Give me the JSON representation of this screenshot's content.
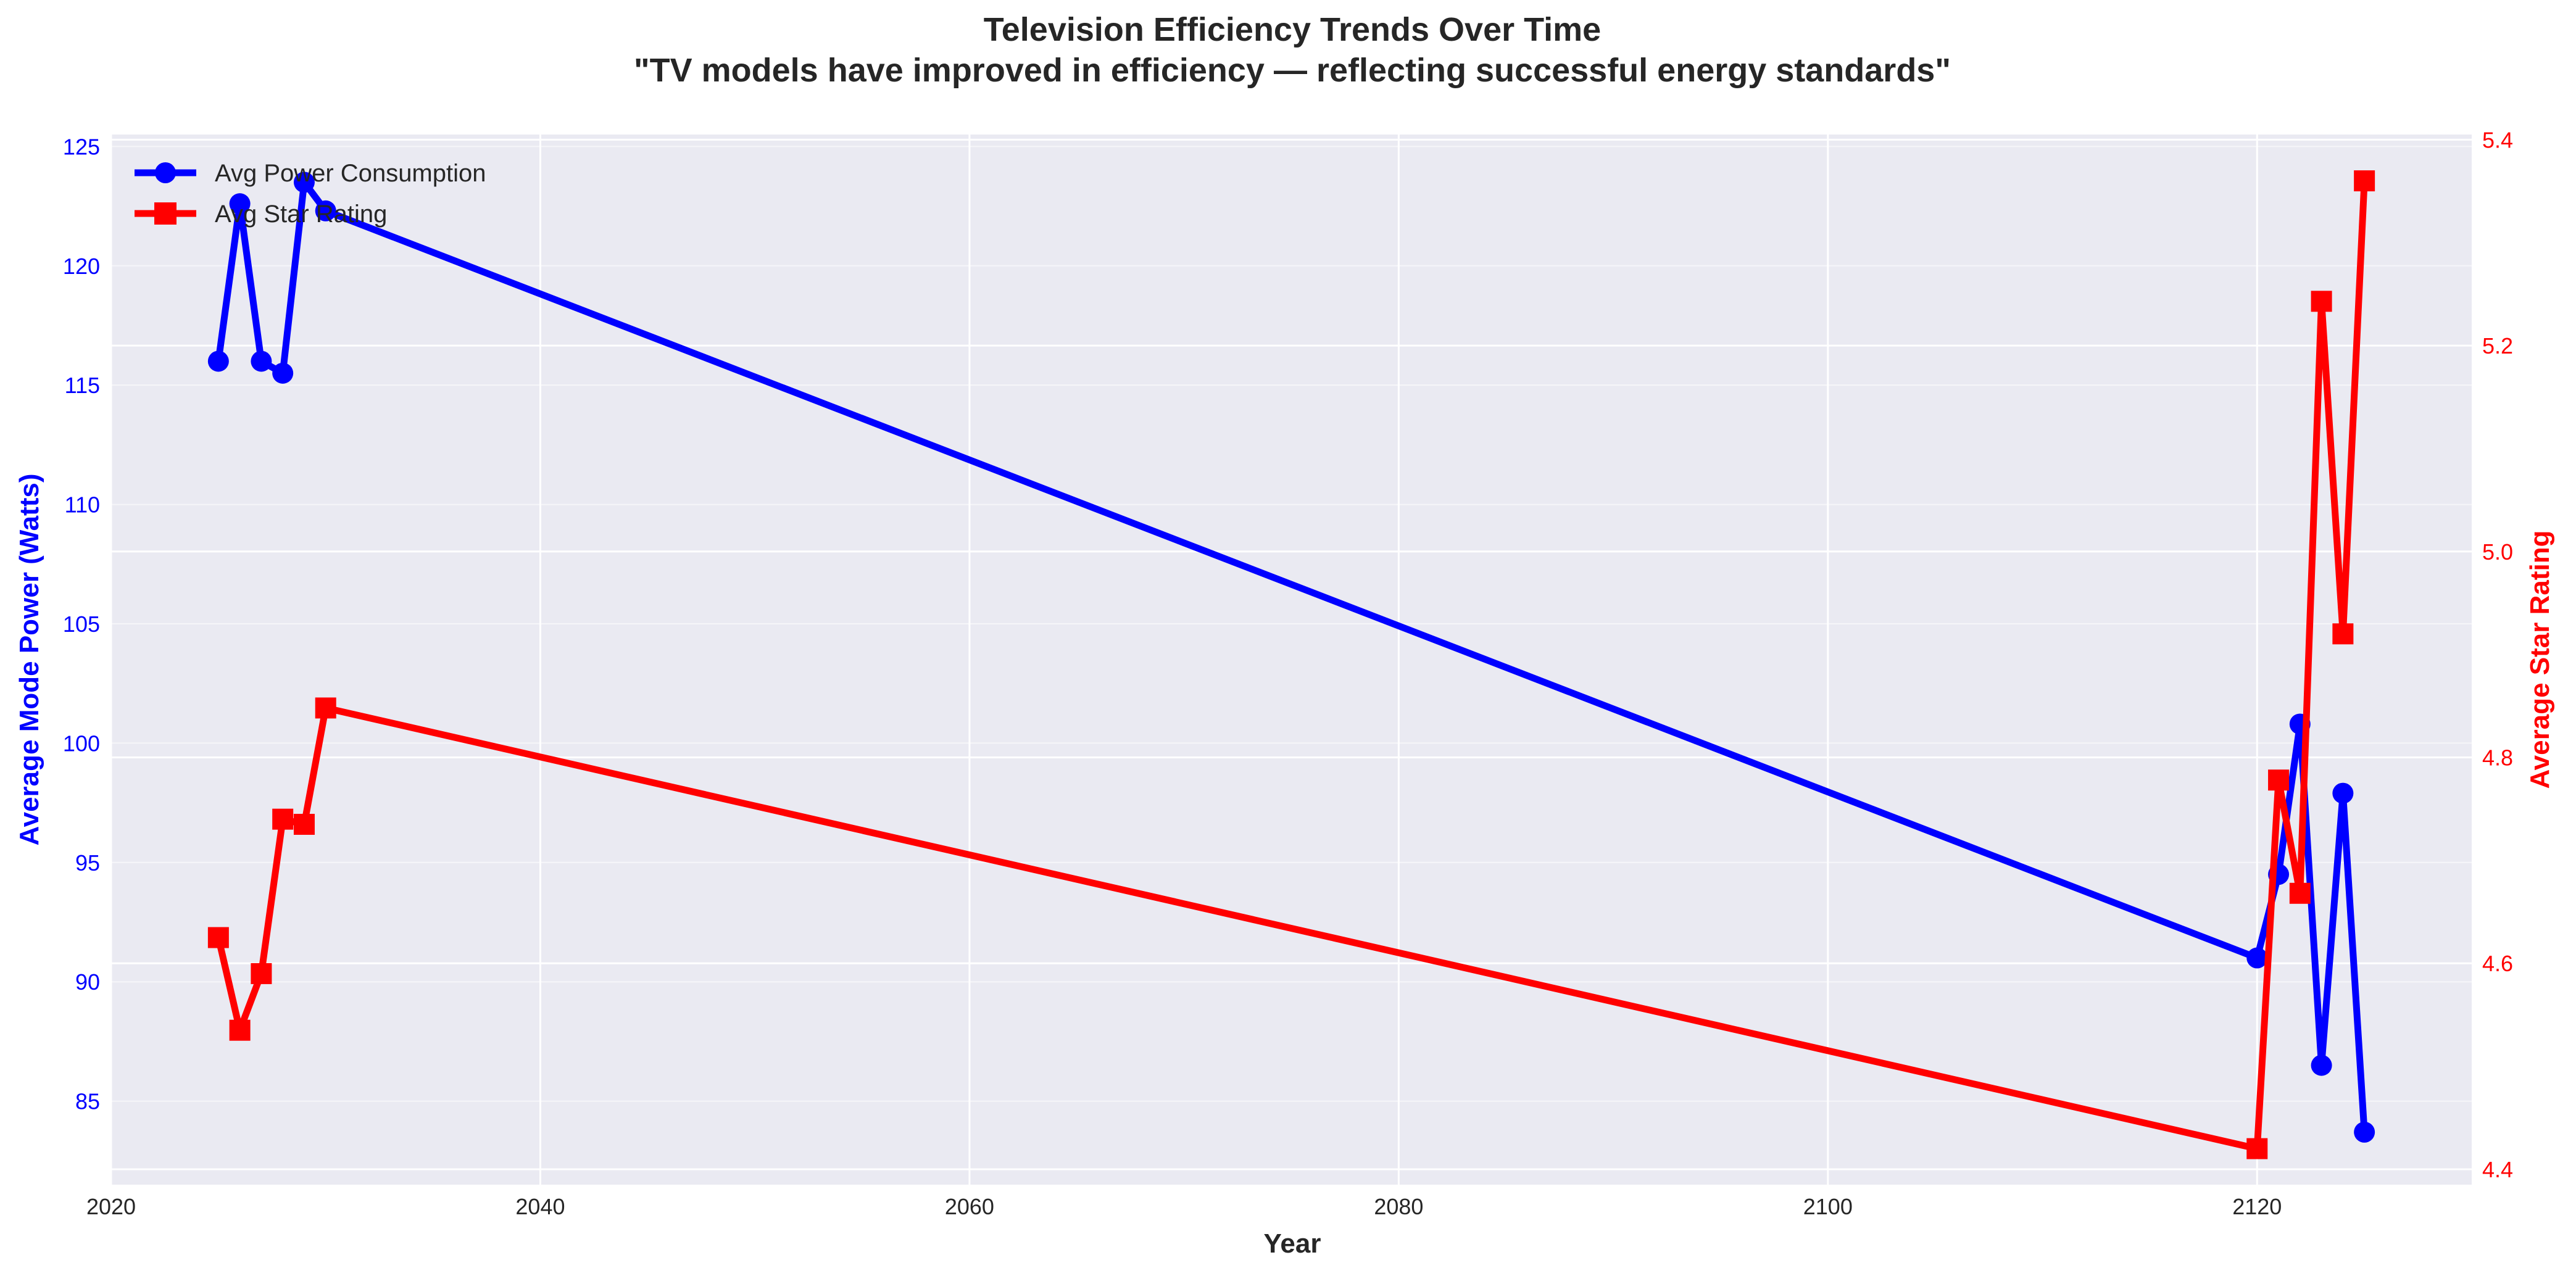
{
  "chart_data": {
    "type": "line",
    "title": "Television Efficiency Trends Over Time",
    "subtitle": "\"TV models have improved in efficiency — reflecting successful energy standards\"",
    "xlabel": "Year",
    "ylabel_left": "Average Mode Power (Watts)",
    "ylabel_right": "Average Star Rating",
    "xlim": [
      2020,
      2130
    ],
    "ylim_left": [
      81.5,
      125.5
    ],
    "ylim_right": [
      4.385,
      5.405
    ],
    "x_ticks": [
      2020,
      2040,
      2060,
      2080,
      2100,
      2120
    ],
    "y_left_ticks": [
      85,
      90,
      95,
      100,
      105,
      110,
      115,
      120,
      125
    ],
    "y_right_ticks": [
      "4.4",
      "4.6",
      "4.8",
      "5.0",
      "5.2",
      "5.4"
    ],
    "grid": true,
    "legend_position": "top-left",
    "colors": {
      "power": "#0000ff",
      "star": "#ff0000",
      "background": "#eaeaf2",
      "grid": "#ffffff"
    },
    "series": [
      {
        "name": "Avg Power Consumption",
        "axis": "left",
        "marker": "circle",
        "points": [
          [
            2025,
            116.0
          ],
          [
            2026,
            122.6
          ],
          [
            2027,
            116.0
          ],
          [
            2028,
            115.5
          ],
          [
            2029,
            123.5
          ],
          [
            2030,
            122.3
          ],
          [
            2120,
            91.0
          ],
          [
            2121,
            94.5
          ],
          [
            2122,
            100.8
          ],
          [
            2123,
            86.5
          ],
          [
            2124,
            97.9
          ],
          [
            2125,
            83.7
          ]
        ]
      },
      {
        "name": "Avg Star Rating",
        "axis": "right",
        "marker": "square",
        "points": [
          [
            2025,
            4.625
          ],
          [
            2026,
            4.535
          ],
          [
            2027,
            4.59
          ],
          [
            2028,
            4.74
          ],
          [
            2029,
            4.735
          ],
          [
            2030,
            4.848
          ],
          [
            2120,
            4.42
          ],
          [
            2121,
            4.778
          ],
          [
            2122,
            4.668
          ],
          [
            2123,
            5.243
          ],
          [
            2124,
            4.92
          ],
          [
            2125,
            5.36
          ]
        ]
      }
    ]
  }
}
